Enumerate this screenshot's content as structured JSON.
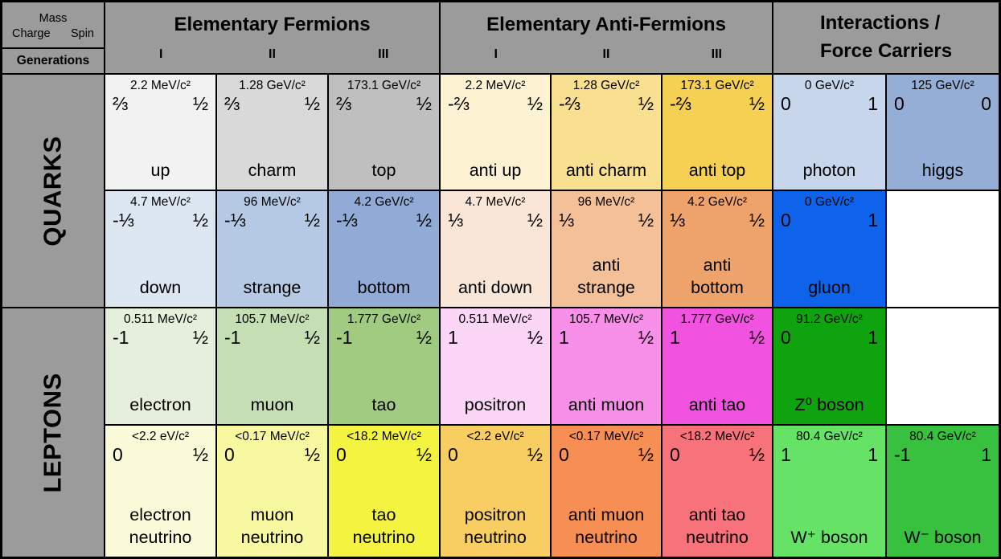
{
  "legend": {
    "mass": "Mass",
    "charge": "Charge",
    "spin": "Spin",
    "generations": "Generations"
  },
  "sections": [
    {
      "title": "Elementary Fermions",
      "generations": [
        "I",
        "II",
        "III"
      ]
    },
    {
      "title": "Elementary Anti-Fermions",
      "generations": [
        "I",
        "II",
        "III"
      ]
    },
    {
      "title": "Interactions /\nForce Carriers"
    }
  ],
  "groups": [
    {
      "label": "QUARKS"
    },
    {
      "label": "LEPTONS"
    }
  ],
  "colors": {
    "border": "#000000",
    "header_bg": "#9b9b9b",
    "side_bg": "#9b9b9b",
    "empty_bg": "#ffffff",
    "text": "#000000"
  },
  "rows": [
    {
      "cells": [
        {
          "mass": "2.2 MeV/c²",
          "charge": "⅔",
          "spin": "½",
          "name": "up",
          "bg": "#f2f2f2"
        },
        {
          "mass": "1.28 GeV/c²",
          "charge": "⅔",
          "spin": "½",
          "name": "charm",
          "bg": "#d9d9d9"
        },
        {
          "mass": "173.1 GeV/c²",
          "charge": "⅔",
          "spin": "½",
          "name": "top",
          "bg": "#bfbfbf"
        },
        {
          "mass": "2.2 MeV/c²",
          "charge": "-⅔",
          "spin": "½",
          "name": "anti up",
          "bg": "#fdf3d2"
        },
        {
          "mass": "1.28 GeV/c²",
          "charge": "-⅔",
          "spin": "½",
          "name": "anti charm",
          "bg": "#f9e090"
        },
        {
          "mass": "173.1 GeV/c²",
          "charge": "-⅔",
          "spin": "½",
          "name": "anti top",
          "bg": "#f6d053"
        },
        {
          "mass": "0 GeV/c²",
          "charge": "0",
          "spin": "1",
          "name": "photon",
          "bg": "#c7d6eb"
        },
        {
          "mass": "125 GeV/c²",
          "charge": "0",
          "spin": "0",
          "name": "higgs",
          "bg": "#94aed6"
        }
      ]
    },
    {
      "cells": [
        {
          "mass": "4.7 MeV/c²",
          "charge": "-⅓",
          "spin": "½",
          "name": "down",
          "bg": "#dde7f2"
        },
        {
          "mass": "96 MeV/c²",
          "charge": "-⅓",
          "spin": "½",
          "name": "strange",
          "bg": "#b6c9e4"
        },
        {
          "mass": "4.2 GeV/c²",
          "charge": "-⅓",
          "spin": "½",
          "name": "bottom",
          "bg": "#91abd6"
        },
        {
          "mass": "4.7 MeV/c²",
          "charge": "⅓",
          "spin": "½",
          "name": "anti down",
          "bg": "#fae6d6"
        },
        {
          "mass": "96 MeV/c²",
          "charge": "⅓",
          "spin": "½",
          "name": "anti\nstrange",
          "bg": "#f3c098"
        },
        {
          "mass": "4.2 GeV/c²",
          "charge": "⅓",
          "spin": "½",
          "name": "anti\nbottom",
          "bg": "#eea36a"
        },
        {
          "mass": "0 GeV/c²",
          "charge": "0",
          "spin": "1",
          "name": "gluon",
          "bg": "#0e63ea"
        },
        {
          "empty": true
        }
      ]
    },
    {
      "cells": [
        {
          "mass": "0.511 MeV/c²",
          "charge": "-1",
          "spin": "½",
          "name": "electron",
          "bg": "#e6efdc"
        },
        {
          "mass": "105.7 MeV/c²",
          "charge": "-1",
          "spin": "½",
          "name": "muon",
          "bg": "#c6deb3"
        },
        {
          "mass": "1.777 GeV/c²",
          "charge": "-1",
          "spin": "½",
          "name": "tao",
          "bg": "#a1cb80"
        },
        {
          "mass": "0.511 MeV/c²",
          "charge": "1",
          "spin": "½",
          "name": "positron",
          "bg": "#fbd6f7"
        },
        {
          "mass": "105.7 MeV/c²",
          "charge": "1",
          "spin": "½",
          "name": "anti muon",
          "bg": "#f88fe9"
        },
        {
          "mass": "1.777 GeV/c²",
          "charge": "1",
          "spin": "½",
          "name": "anti tao",
          "bg": "#f252e0"
        },
        {
          "mass": "91.2 GeV/c²",
          "charge": "0",
          "spin": "1",
          "name": "Z⁰ boson",
          "bg": "#10a310"
        },
        {
          "empty": true
        }
      ]
    },
    {
      "cells": [
        {
          "mass": "<2.2 eV/c²",
          "charge": "0",
          "spin": "½",
          "name": "electron\nneutrino",
          "bg": "#fbfbda"
        },
        {
          "mass": "<0.17 MeV/c²",
          "charge": "0",
          "spin": "½",
          "name": "muon\nneutrino",
          "bg": "#f8f8a1"
        },
        {
          "mass": "<18.2 MeV/c²",
          "charge": "0",
          "spin": "½",
          "name": "tao\nneutrino",
          "bg": "#f4f440"
        },
        {
          "mass": "<2.2 eV/c²",
          "charge": "0",
          "spin": "½",
          "name": "positron\nneutrino",
          "bg": "#f8cd62"
        },
        {
          "mass": "<0.17 MeV/c²",
          "charge": "0",
          "spin": "½",
          "name": "anti muon\nneutrino",
          "bg": "#f78f55"
        },
        {
          "mass": "<18.2 MeV/c²",
          "charge": "0",
          "spin": "½",
          "name": "anti tao\nneutrino",
          "bg": "#f8727c"
        },
        {
          "mass": "80.4 GeV/c²",
          "charge": "1",
          "spin": "1",
          "name": "W⁺ boson",
          "bg": "#66e366"
        },
        {
          "mass": "80.4 GeV/c²",
          "charge": "-1",
          "spin": "1",
          "name": "W⁻ boson",
          "bg": "#38c13e"
        }
      ]
    }
  ]
}
